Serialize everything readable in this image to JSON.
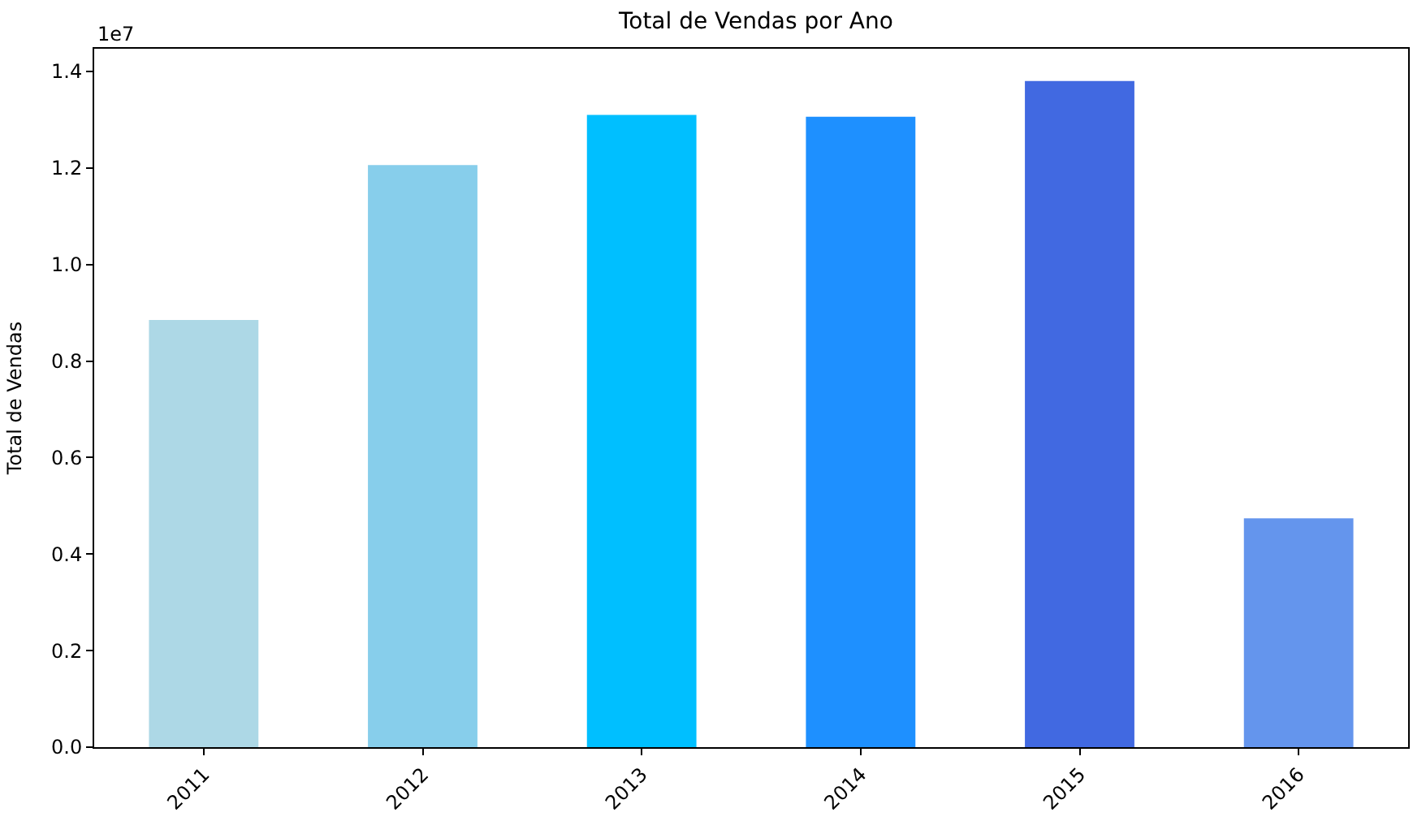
{
  "chart_data": {
    "type": "bar",
    "title": "Total de Vendas por Ano",
    "ylabel": "Total de Vendas",
    "categories": [
      "2011",
      "2012",
      "2013",
      "2014",
      "2015",
      "2016"
    ],
    "values": [
      0.885,
      1.206,
      1.31,
      1.306,
      1.38,
      0.474
    ],
    "colors": [
      "#add8e6",
      "#87ceeb",
      "#00bfff",
      "#1e90ff",
      "#4169e1",
      "#6495ed"
    ],
    "ylim": [
      0,
      1.447
    ],
    "yticks": [
      {
        "value": 0,
        "label": "0.0"
      },
      {
        "value": 0.2,
        "label": "0.2"
      },
      {
        "value": 0.4,
        "label": "0.4"
      },
      {
        "value": 0.6,
        "label": "0.6"
      },
      {
        "value": 0.8,
        "label": "0.8"
      },
      {
        "value": 1.0,
        "label": "1.0"
      },
      {
        "value": 1.2,
        "label": "1.2"
      },
      {
        "value": 1.4,
        "label": "1.4"
      }
    ],
    "annotations": [
      "1e7"
    ]
  }
}
